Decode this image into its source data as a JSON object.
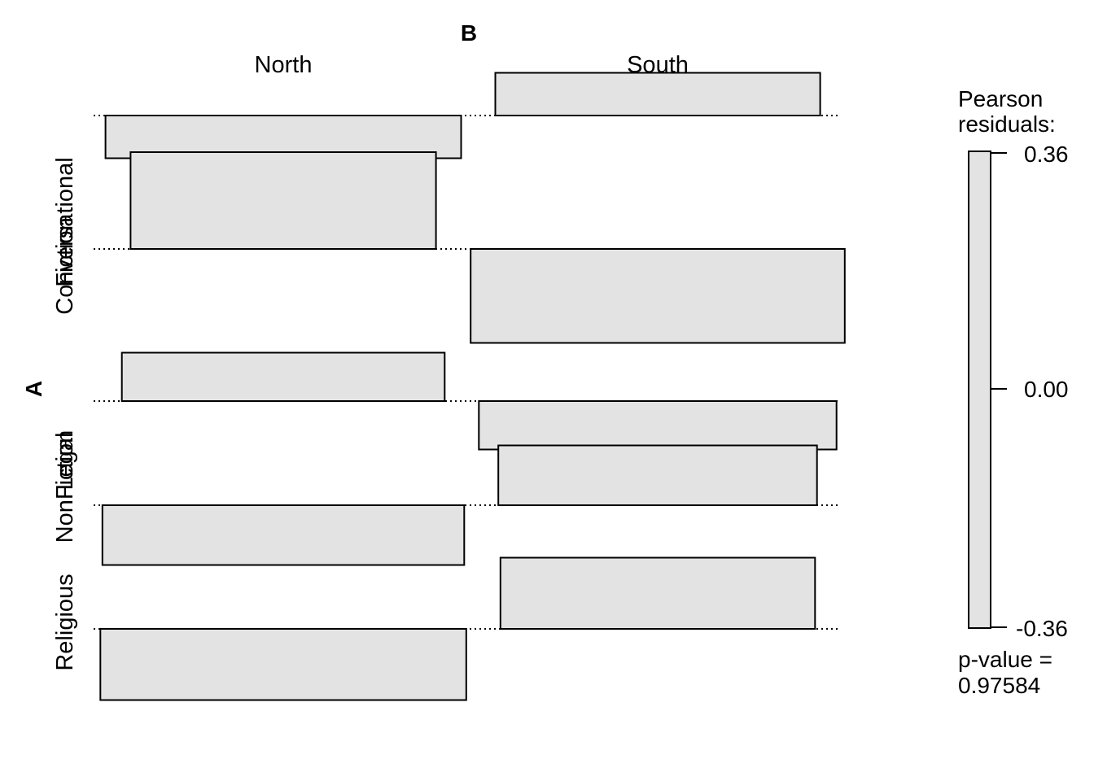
{
  "chart_data": {
    "type": "association-plot",
    "title": "",
    "xlabel": "B",
    "ylabel": "A",
    "columns": [
      "North",
      "South"
    ],
    "rows": [
      "Conversational",
      "Fiction",
      "Legal",
      "NonFiction",
      "Religious"
    ],
    "cells": [
      {
        "row": "Conversational",
        "col": "North",
        "residual": -0.15
      },
      {
        "row": "Conversational",
        "col": "South",
        "residual": 0.15
      },
      {
        "row": "Fiction",
        "col": "North",
        "residual": 0.34
      },
      {
        "row": "Fiction",
        "col": "South",
        "residual": -0.33
      },
      {
        "row": "Legal",
        "col": "North",
        "residual": 0.17
      },
      {
        "row": "Legal",
        "col": "South",
        "residual": -0.17
      },
      {
        "row": "NonFiction",
        "col": "North",
        "residual": -0.21
      },
      {
        "row": "NonFiction",
        "col": "South",
        "residual": 0.21
      },
      {
        "row": "Religious",
        "col": "North",
        "residual": -0.25
      },
      {
        "row": "Religious",
        "col": "South",
        "residual": 0.25
      }
    ],
    "legend": {
      "title_line1": "Pearson",
      "title_line2": "residuals:",
      "ticks": [
        "0.36",
        "0.00",
        "-0.36"
      ],
      "range": [
        -0.36,
        0.36
      ],
      "fill": "#e3e3e3",
      "placement": "right"
    },
    "pvalue_line1": "p-value =",
    "pvalue_line2": "0.97584",
    "colors": {
      "tile_fill": "#e3e3e3",
      "stroke": "#000000"
    }
  }
}
